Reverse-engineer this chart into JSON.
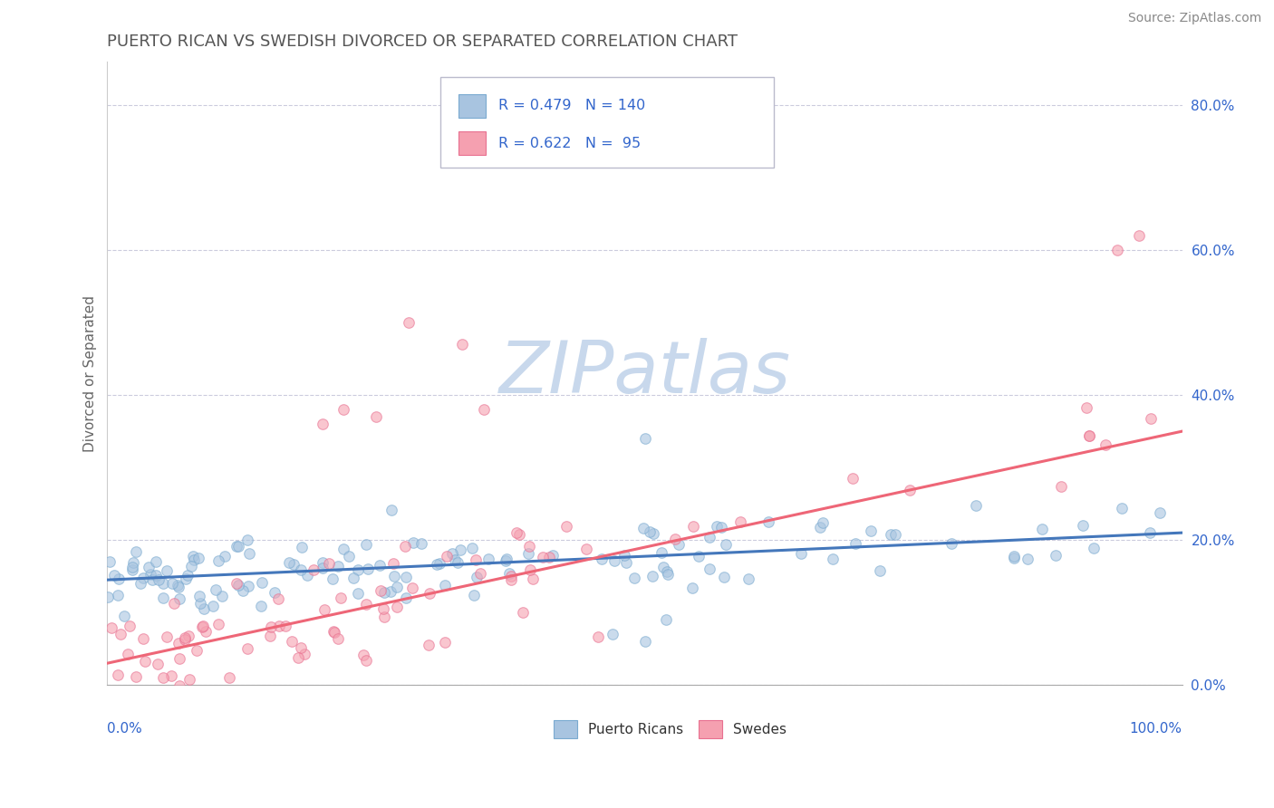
{
  "title": "PUERTO RICAN VS SWEDISH DIVORCED OR SEPARATED CORRELATION CHART",
  "source": "Source: ZipAtlas.com",
  "ylabel": "Divorced or Separated",
  "blue_color": "#A8C4E0",
  "pink_color": "#F5A0B0",
  "blue_edge_color": "#7AAAD0",
  "pink_edge_color": "#E87090",
  "blue_line_color": "#4477BB",
  "pink_line_color": "#EE6677",
  "title_color": "#555555",
  "legend_text_color": "#3366CC",
  "watermark_color": "#C8D8EC",
  "background_color": "#FFFFFF",
  "grid_color": "#CCCCDD",
  "axis_label_color": "#3366CC",
  "ytick_label_color": "#3366CC",
  "blue_trend_slope": 0.065,
  "blue_trend_intercept": 0.145,
  "pink_trend_slope": 0.32,
  "pink_trend_intercept": 0.03,
  "ylim_min": 0.0,
  "ylim_max": 0.86,
  "xlim_min": 0.0,
  "xlim_max": 1.0,
  "yticks": [
    0.0,
    0.2,
    0.4,
    0.6,
    0.8
  ],
  "ytick_labels": [
    "0.0%",
    "20.0%",
    "40.0%",
    "60.0%",
    "80.0%"
  ]
}
